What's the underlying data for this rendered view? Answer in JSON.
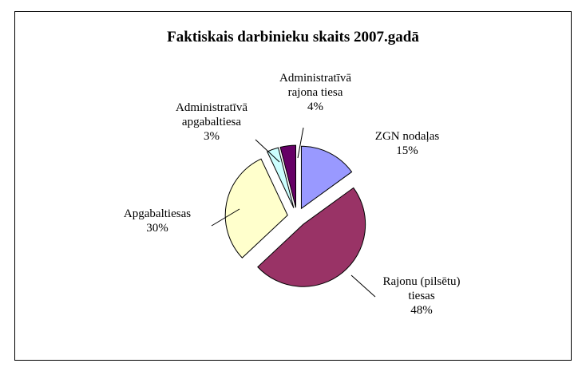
{
  "chart_data": {
    "type": "pie",
    "title": "Faktiskais darbinieku skaits 2007.gadā",
    "categories": [
      "ZGN nodaļas",
      "Rajonu (pilsētu) tiesas",
      "Apgabaltiesas",
      "Administratīvā apgabaltiesa",
      "Administratīvā rajona tiesa"
    ],
    "values": [
      15,
      48,
      30,
      3,
      4
    ],
    "value_labels": [
      "15%",
      "48%",
      "30%",
      "3%",
      "4%"
    ],
    "colors": [
      "#9999ff",
      "#993366",
      "#ffffcc",
      "#ccffff",
      "#660066"
    ]
  }
}
